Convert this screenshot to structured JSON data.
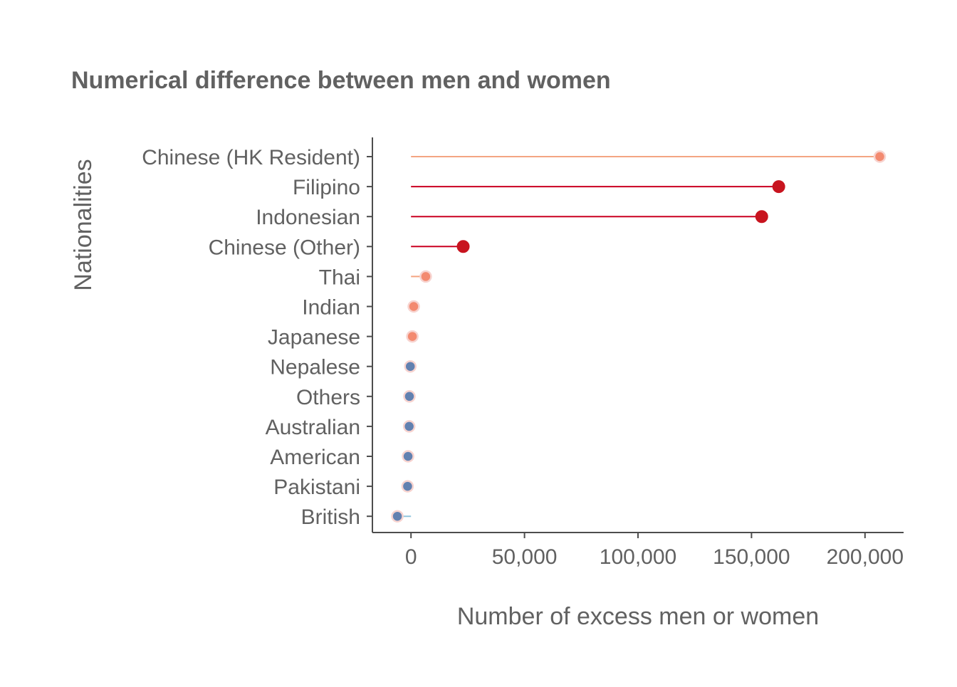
{
  "chart_data": {
    "type": "lollipop",
    "title": "Numerical difference between men and women",
    "xlabel": "Number of excess men or women",
    "ylabel": "Nationalities",
    "xlim": [
      -17000,
      217000
    ],
    "x_ticks": [
      0,
      50000,
      100000,
      150000,
      200000
    ],
    "x_tick_labels": [
      "0",
      "50,000",
      "100,000",
      "150,000",
      "200,000"
    ],
    "grid": false,
    "legend": "none",
    "categories": [
      "Chinese (HK Resident)",
      "Filipino",
      "Indonesian",
      "Chinese (Other)",
      "Thai",
      "Indian",
      "Japanese",
      "Nepalese",
      "Others",
      "Australian",
      "American",
      "Pakistani",
      "British"
    ],
    "values": [
      206500,
      162000,
      154500,
      23000,
      6500,
      1200,
      600,
      -300,
      -700,
      -800,
      -1300,
      -1500,
      -6000
    ],
    "colors": [
      "#f4a582",
      "#ca0020",
      "#ca0020",
      "#ca0020",
      "#f4a582",
      "#f4a582",
      "#f4a582",
      "#92c5de",
      "#92c5de",
      "#92c5de",
      "#92c5de",
      "#92c5de",
      "#92c5de"
    ],
    "point_colors": [
      "#f38a70",
      "#c8141f",
      "#c8141f",
      "#c8141f",
      "#f38a70",
      "#f38a70",
      "#f38a70",
      "#6281b0",
      "#6281b0",
      "#6281b0",
      "#6281b0",
      "#6281b0",
      "#6281b0"
    ]
  }
}
